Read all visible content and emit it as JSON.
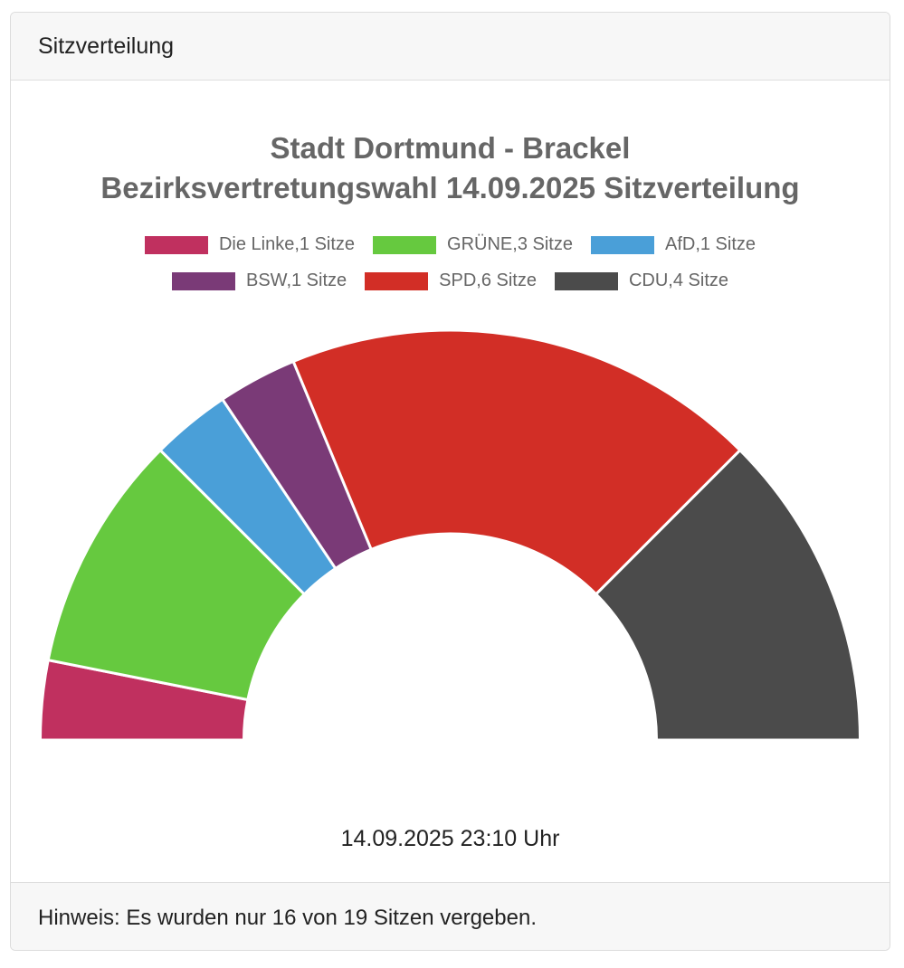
{
  "header": {
    "title": "Sitzverteilung"
  },
  "footer": {
    "note": "Hinweis: Es wurden nur 16 von 19 Sitzen vergeben."
  },
  "timestamp": "14.09.2025 23:10 Uhr",
  "chart_data": {
    "type": "pie",
    "variant": "half-donut (parliament)",
    "title_line1": "Stadt Dortmund - Brackel",
    "title_line2": "Bezirksvertretungswahl 14.09.2025 Sitzverteilung",
    "legend_position": "top",
    "series": [
      {
        "name": "Die Linke",
        "value": 1,
        "label": "Die Linke,1 Sitze",
        "color": "#c0305f"
      },
      {
        "name": "GRÜNE",
        "value": 3,
        "label": "GRÜNE,3 Sitze",
        "color": "#66c93f"
      },
      {
        "name": "AfD",
        "value": 1,
        "label": "AfD,1 Sitze",
        "color": "#4a9fd8"
      },
      {
        "name": "BSW",
        "value": 1,
        "label": "BSW,1 Sitze",
        "color": "#7a3a77"
      },
      {
        "name": "SPD",
        "value": 6,
        "label": "SPD,6 Sitze",
        "color": "#d22e26"
      },
      {
        "name": "CDU",
        "value": 4,
        "label": "CDU,4 Sitze",
        "color": "#4b4b4b"
      }
    ]
  }
}
